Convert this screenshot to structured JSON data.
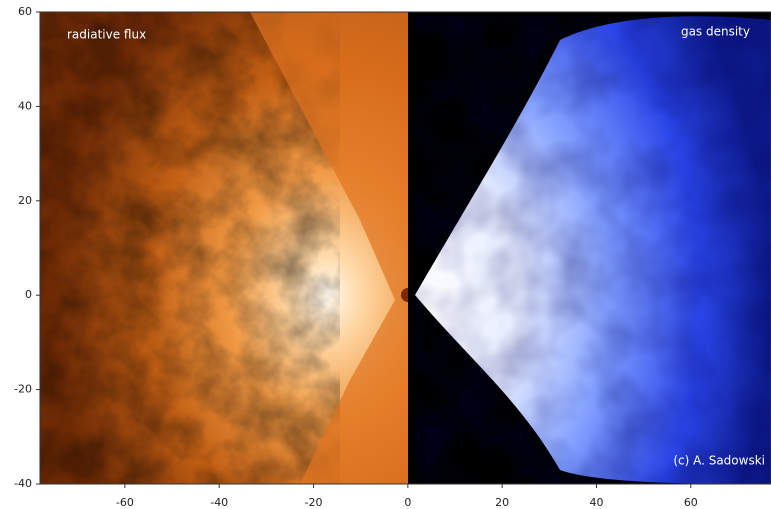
{
  "chart_data": {
    "type": "image",
    "annotations": [
      "radiative flux",
      "gas density",
      "(c) A. Sadowski"
    ],
    "xlim": [
      -78,
      77
    ],
    "xticks": [
      -60,
      -40,
      -20,
      0,
      20,
      40,
      60
    ],
    "ylim": [
      -40,
      60
    ],
    "yticks": [
      -40,
      -20,
      0,
      20,
      40,
      60
    ]
  }
}
